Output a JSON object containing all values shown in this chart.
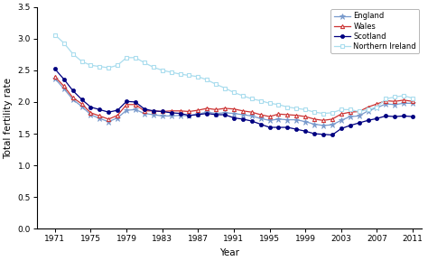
{
  "years": [
    1971,
    1972,
    1973,
    1974,
    1975,
    1976,
    1977,
    1978,
    1979,
    1980,
    1981,
    1982,
    1983,
    1984,
    1985,
    1986,
    1987,
    1988,
    1989,
    1990,
    1991,
    1992,
    1993,
    1994,
    1995,
    1996,
    1997,
    1998,
    1999,
    2000,
    2001,
    2002,
    2003,
    2004,
    2005,
    2006,
    2007,
    2008,
    2009,
    2010,
    2011
  ],
  "england": [
    2.37,
    2.21,
    2.04,
    1.93,
    1.8,
    1.74,
    1.69,
    1.75,
    1.87,
    1.88,
    1.82,
    1.8,
    1.78,
    1.78,
    1.79,
    1.78,
    1.81,
    1.84,
    1.82,
    1.83,
    1.82,
    1.8,
    1.78,
    1.74,
    1.71,
    1.73,
    1.72,
    1.72,
    1.69,
    1.65,
    1.63,
    1.64,
    1.71,
    1.77,
    1.78,
    1.86,
    1.91,
    1.97,
    1.96,
    1.98,
    1.98
  ],
  "wales": [
    2.4,
    2.25,
    2.07,
    1.97,
    1.83,
    1.78,
    1.73,
    1.79,
    1.96,
    1.96,
    1.86,
    1.86,
    1.85,
    1.86,
    1.86,
    1.85,
    1.87,
    1.9,
    1.88,
    1.9,
    1.89,
    1.86,
    1.84,
    1.8,
    1.77,
    1.81,
    1.8,
    1.79,
    1.77,
    1.73,
    1.71,
    1.73,
    1.81,
    1.84,
    1.85,
    1.92,
    1.97,
    2.02,
    2.01,
    2.03,
    2.01
  ],
  "scotland": [
    2.52,
    2.36,
    2.18,
    2.04,
    1.92,
    1.88,
    1.84,
    1.87,
    2.01,
    2.0,
    1.89,
    1.86,
    1.85,
    1.83,
    1.82,
    1.79,
    1.8,
    1.82,
    1.8,
    1.8,
    1.75,
    1.73,
    1.7,
    1.65,
    1.6,
    1.6,
    1.6,
    1.57,
    1.54,
    1.5,
    1.49,
    1.48,
    1.58,
    1.63,
    1.67,
    1.71,
    1.74,
    1.78,
    1.77,
    1.78,
    1.77
  ],
  "northern_ireland": [
    3.06,
    2.93,
    2.76,
    2.64,
    2.58,
    2.56,
    2.54,
    2.58,
    2.7,
    2.7,
    2.62,
    2.55,
    2.5,
    2.47,
    2.44,
    2.42,
    2.4,
    2.35,
    2.28,
    2.22,
    2.15,
    2.1,
    2.05,
    2.02,
    1.98,
    1.96,
    1.92,
    1.9,
    1.88,
    1.84,
    1.82,
    1.83,
    1.88,
    1.88,
    1.85,
    1.88,
    1.92,
    2.05,
    2.08,
    2.1,
    2.06
  ],
  "england_color": "#7799cc",
  "wales_color": "#cc3333",
  "scotland_color": "#000080",
  "northern_ireland_color": "#aaddee",
  "xlabel": "Year",
  "ylabel": "Total fertility rate",
  "ylim": [
    0.0,
    3.5
  ],
  "yticks": [
    0.0,
    0.5,
    1.0,
    1.5,
    2.0,
    2.5,
    3.0,
    3.5
  ],
  "xticks": [
    1971,
    1975,
    1979,
    1983,
    1987,
    1991,
    1995,
    1999,
    2003,
    2007,
    2011
  ],
  "legend_labels": [
    "England",
    "Wales",
    "Scotland",
    "Northern Ireland"
  ]
}
